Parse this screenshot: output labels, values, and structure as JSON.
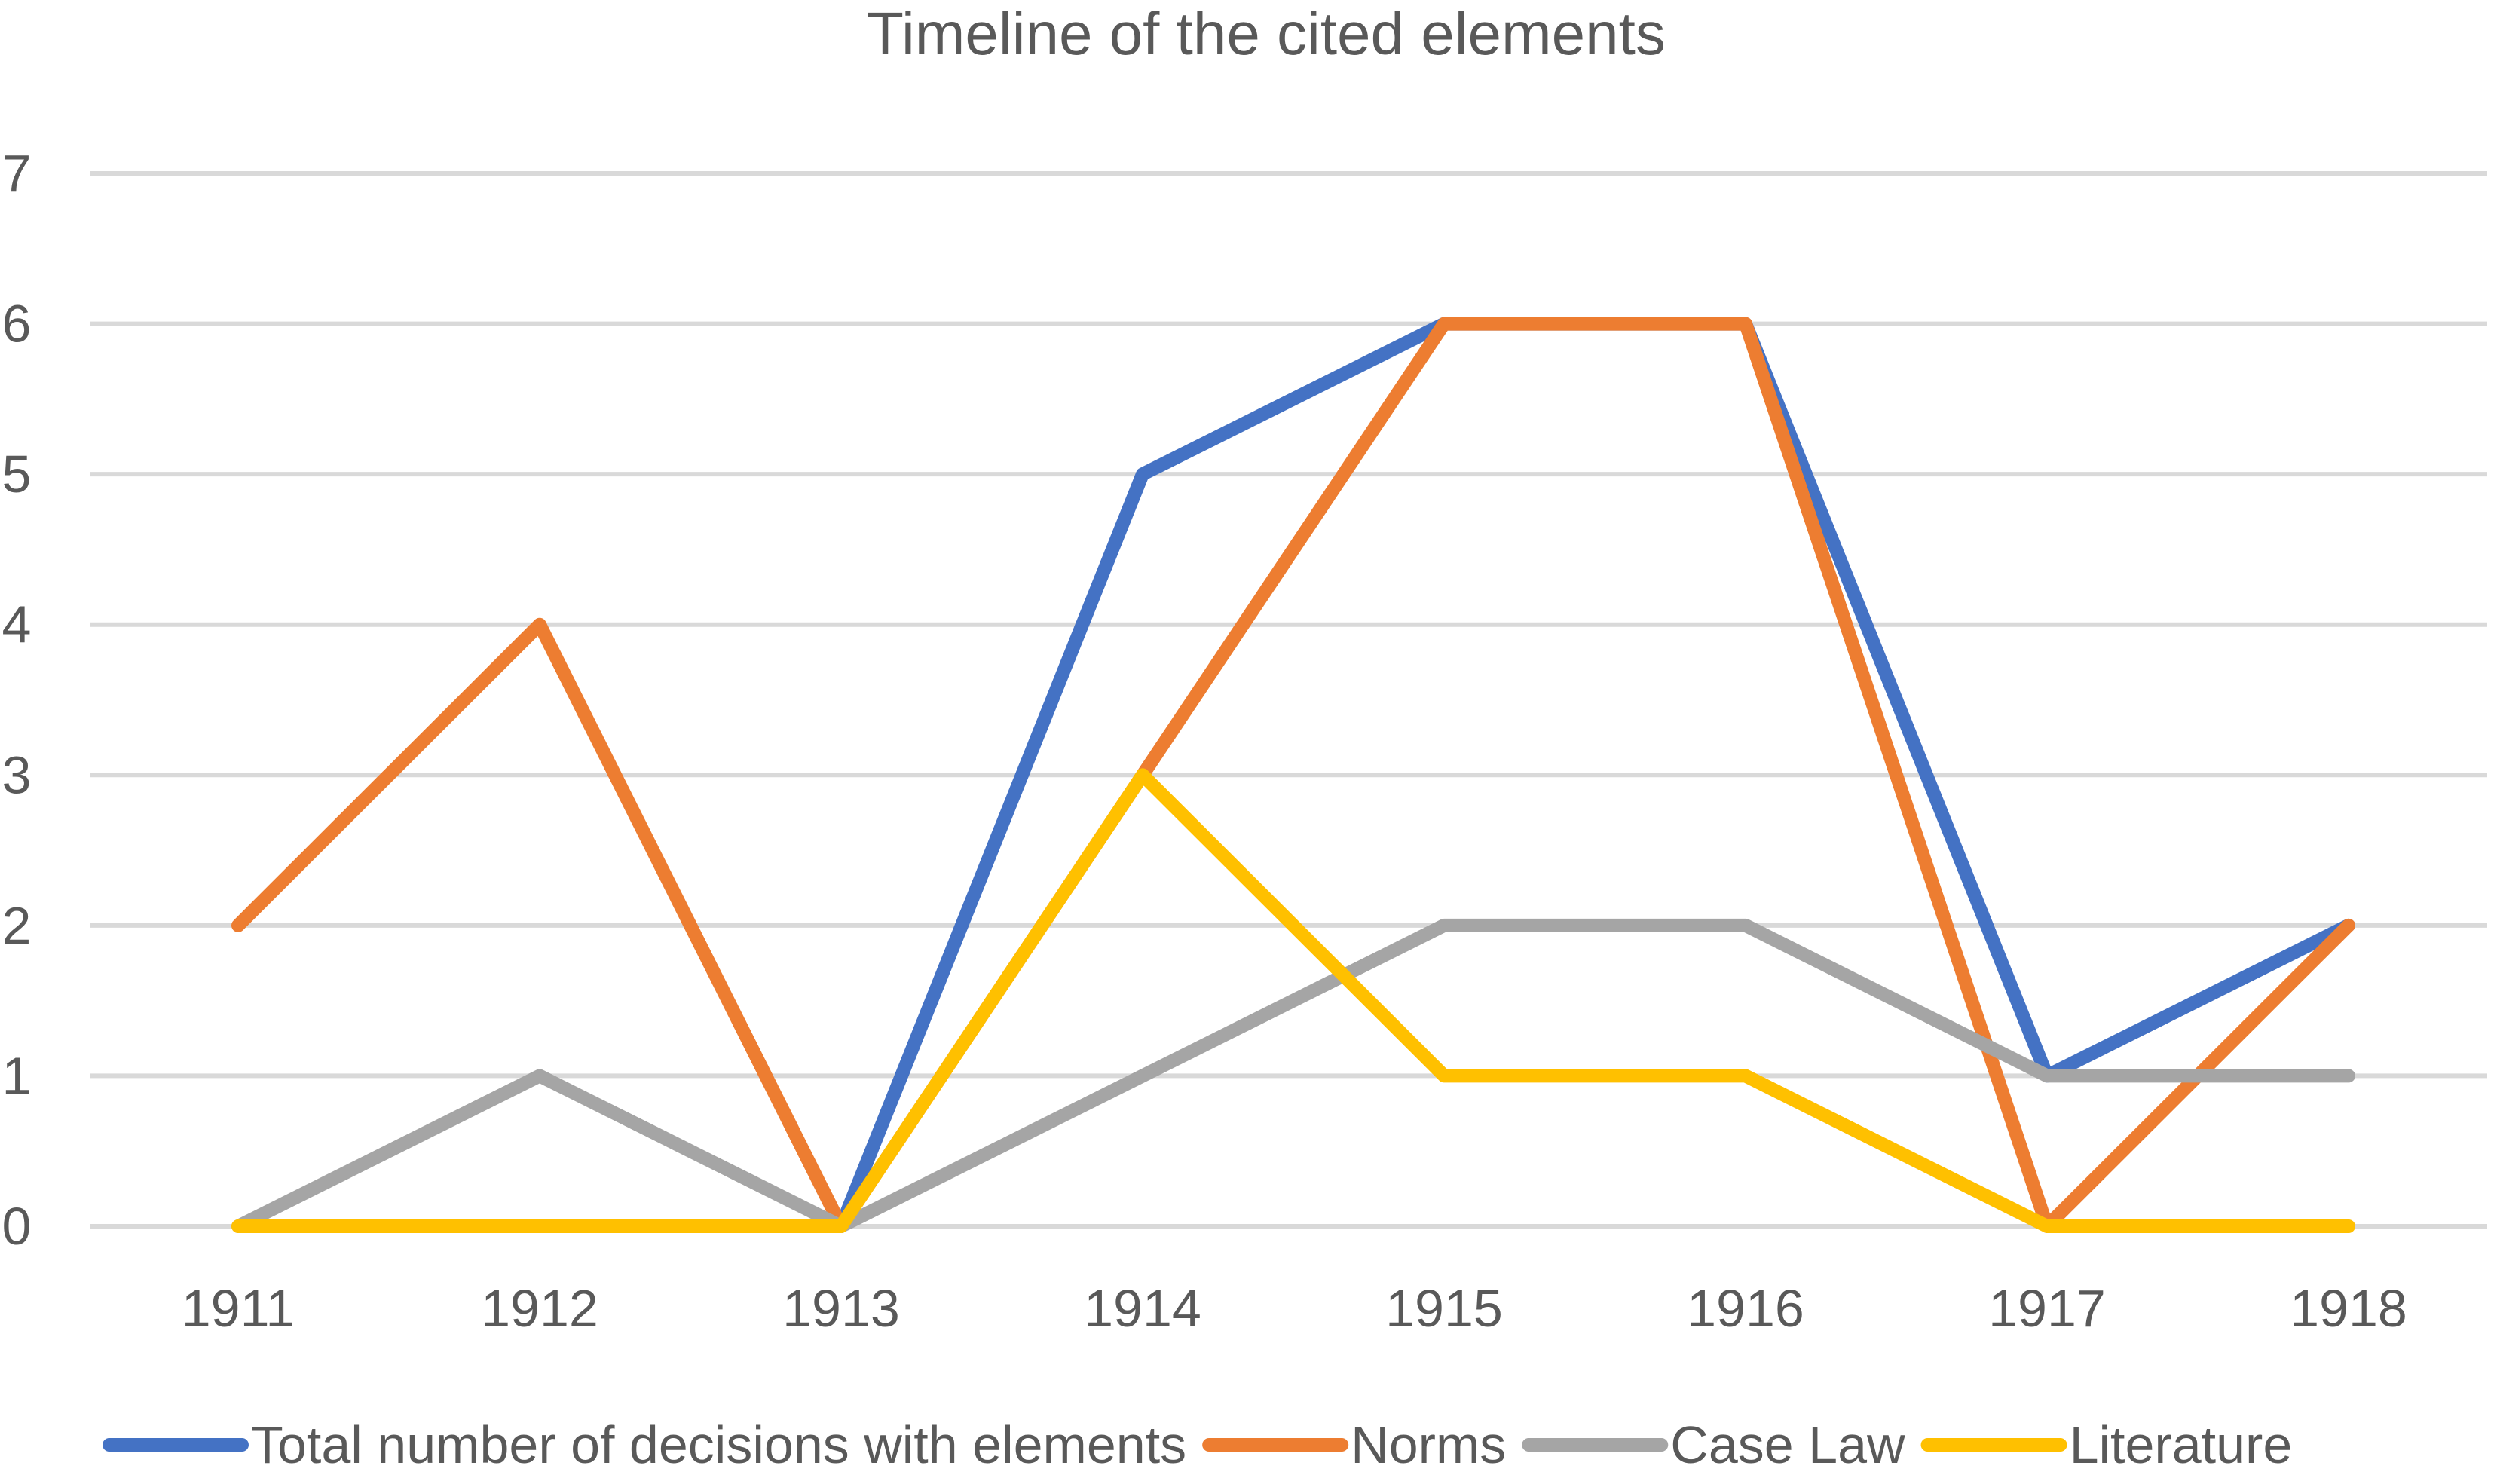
{
  "chart_data": {
    "type": "line",
    "title": "Timeline of the cited elements",
    "categories": [
      "1911",
      "1912",
      "1913",
      "1914",
      "1915",
      "1916",
      "1917",
      "1918"
    ],
    "ylim": [
      0,
      7
    ],
    "yticks": [
      0,
      1,
      2,
      3,
      4,
      5,
      6,
      7
    ],
    "grid": true,
    "legend_position": "bottom",
    "series": [
      {
        "name": "Total number of decisions with elements",
        "color": "#4472C4",
        "values": [
          null,
          null,
          0,
          5,
          6,
          6,
          1,
          2
        ]
      },
      {
        "name": "Norms",
        "color": "#ED7D31",
        "values": [
          2,
          4,
          0,
          3,
          6,
          6,
          0,
          2
        ]
      },
      {
        "name": "Case Law",
        "color": "#A5A5A5",
        "values": [
          0,
          1,
          0,
          1,
          2,
          2,
          1,
          1
        ]
      },
      {
        "name": "Literature",
        "color": "#FFC000",
        "values": [
          0,
          0,
          0,
          3,
          1,
          1,
          0,
          0
        ]
      }
    ]
  }
}
